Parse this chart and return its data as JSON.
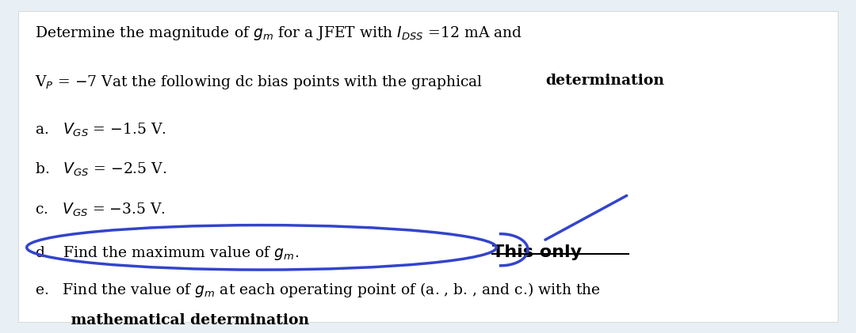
{
  "bg_color": "#e8f0f5",
  "box_color": "#ffffff",
  "text_color": "#000000",
  "blue_color": "#3344cc",
  "title_line1": "Determine the magnitude of $g_m$ for a JFET with $I_{DSS}$ =12 mA and",
  "title_line2": "V$_P$ = −7 Vat the following dc bias points with the graphical ",
  "title_line2_bold": "determination",
  "item_a": "a.   $V_{GS}$ = −1.5 V.",
  "item_b": "b.   $V_{GS}$ = −2.5 V.",
  "item_c": "c.   $V_{GS}$ = −3.5 V.",
  "item_d": "d.   Find the maximum value of $g_m$.",
  "item_e": "e.   Find the value of $g_m$ at each operating point of (a. , b. , and c.) with the",
  "item_e2": "       mathematical determination",
  "this_only": "This only",
  "figsize": [
    10.8,
    4.21
  ],
  "dpi": 100
}
